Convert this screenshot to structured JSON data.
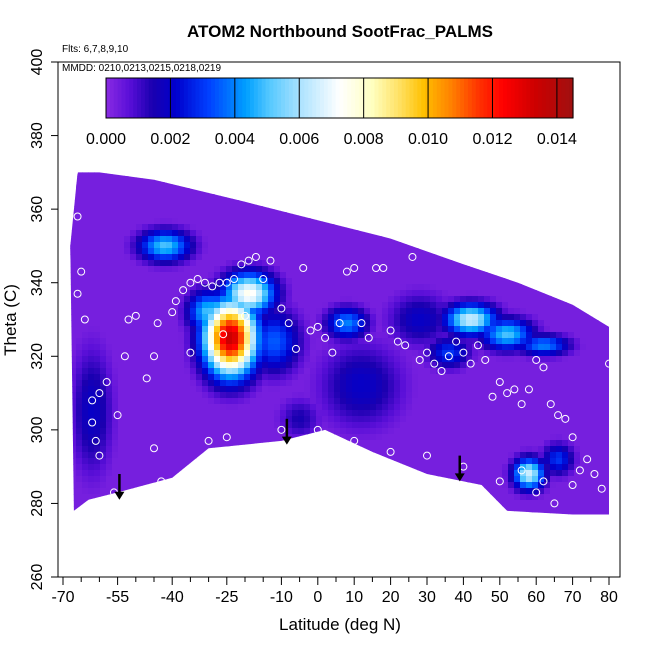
{
  "chart_data": {
    "type": "heatmap",
    "title": "ATOM2 Northbound SootFrac_PALMS",
    "subtitle_lines": [
      "Flts: 6,7,8,9,10",
      "MMDD: 0210,0213,0215,0218,0219"
    ],
    "xlabel": "Latitude (deg N)",
    "ylabel": "Theta (C)",
    "xlim": [
      -70,
      80
    ],
    "ylim": [
      260,
      400
    ],
    "x_ticks": [
      -70,
      -55,
      -40,
      -25,
      -10,
      0,
      10,
      20,
      30,
      40,
      50,
      60,
      70,
      80
    ],
    "y_ticks": [
      260,
      280,
      300,
      320,
      340,
      360,
      380,
      400
    ],
    "colorbar": {
      "range": [
        0,
        0.0145
      ],
      "ticks": [
        "0.000",
        "0.002",
        "0.004",
        "0.006",
        "0.008",
        "0.010",
        "0.012",
        "0.014"
      ],
      "colors": [
        "#8a2be2",
        "#5a0fd8",
        "#1a00b0",
        "#0000cd",
        "#0040ff",
        "#00a0ff",
        "#55c8ff",
        "#b0e4ff",
        "#ffffff",
        "#ffffc0",
        "#ffe060",
        "#ffc000",
        "#ff8000",
        "#ff3000",
        "#ff0000",
        "#cc0000",
        "#a01010"
      ],
      "color_stops": [
        0,
        0.05,
        0.1,
        0.15,
        0.22,
        0.3,
        0.35,
        0.42,
        0.5,
        0.57,
        0.63,
        0.68,
        0.74,
        0.8,
        0.85,
        0.92,
        1.0
      ]
    },
    "boundary_top": [
      [
        -68,
        350
      ],
      [
        -66,
        370
      ],
      [
        -60,
        370
      ],
      [
        -45,
        368
      ],
      [
        -20,
        362
      ],
      [
        0,
        357
      ],
      [
        20,
        352
      ],
      [
        40,
        345
      ],
      [
        55,
        340
      ],
      [
        70,
        334
      ],
      [
        80,
        328
      ]
    ],
    "boundary_bottom": [
      [
        80,
        277
      ],
      [
        70,
        277
      ],
      [
        52,
        278
      ],
      [
        45,
        285
      ],
      [
        30,
        288
      ],
      [
        15,
        294
      ],
      [
        2,
        300
      ],
      [
        -10,
        297
      ],
      [
        -30,
        295
      ],
      [
        -40,
        287
      ],
      [
        -55,
        283
      ],
      [
        -63,
        281
      ],
      [
        -67,
        278
      ]
    ],
    "hotspots": [
      {
        "lat": -24,
        "theta": 325,
        "value": 0.0135,
        "sx": 5,
        "sy": 7
      },
      {
        "lat": -19,
        "theta": 337,
        "value": 0.0075,
        "sx": 5,
        "sy": 4
      },
      {
        "lat": -30,
        "theta": 332,
        "value": 0.005,
        "sx": 4,
        "sy": 4
      },
      {
        "lat": -42,
        "theta": 350,
        "value": 0.005,
        "sx": 5,
        "sy": 3
      },
      {
        "lat": -12,
        "theta": 324,
        "value": 0.0035,
        "sx": 5,
        "sy": 6
      },
      {
        "lat": 8,
        "theta": 329,
        "value": 0.004,
        "sx": 4,
        "sy": 3
      },
      {
        "lat": 12,
        "theta": 312,
        "value": 0.002,
        "sx": 8,
        "sy": 8
      },
      {
        "lat": 42,
        "theta": 330,
        "value": 0.0065,
        "sx": 5,
        "sy": 3
      },
      {
        "lat": 52,
        "theta": 326,
        "value": 0.005,
        "sx": 5,
        "sy": 3
      },
      {
        "lat": 62,
        "theta": 323,
        "value": 0.004,
        "sx": 5,
        "sy": 2
      },
      {
        "lat": 36,
        "theta": 321,
        "value": 0.003,
        "sx": 4,
        "sy": 3
      },
      {
        "lat": 58,
        "theta": 288,
        "value": 0.0065,
        "sx": 3,
        "sy": 3
      },
      {
        "lat": 66,
        "theta": 292,
        "value": 0.003,
        "sx": 3,
        "sy": 3
      },
      {
        "lat": -62,
        "theta": 305,
        "value": 0.002,
        "sx": 4,
        "sy": 12
      },
      {
        "lat": -5,
        "theta": 303,
        "value": 0.0015,
        "sx": 4,
        "sy": 4
      },
      {
        "lat": 28,
        "theta": 330,
        "value": 0.002,
        "sx": 6,
        "sy": 5
      }
    ],
    "observation_points": [
      [
        -67,
        370
      ],
      [
        -66,
        358
      ],
      [
        -65,
        343
      ],
      [
        -66,
        337
      ],
      [
        -64,
        330
      ],
      [
        -62,
        308
      ],
      [
        -60,
        310
      ],
      [
        -58,
        313
      ],
      [
        -62,
        302
      ],
      [
        -61,
        297
      ],
      [
        -60,
        293
      ],
      [
        -58,
        281
      ],
      [
        -56,
        283
      ],
      [
        -55,
        304
      ],
      [
        -53,
        320
      ],
      [
        -52,
        330
      ],
      [
        -50,
        331
      ],
      [
        -47,
        314
      ],
      [
        -45,
        320
      ],
      [
        -44,
        329
      ],
      [
        -43,
        286
      ],
      [
        -40,
        332
      ],
      [
        -39,
        335
      ],
      [
        -37,
        338
      ],
      [
        -35,
        340
      ],
      [
        -33,
        341
      ],
      [
        -31,
        340
      ],
      [
        -29,
        339
      ],
      [
        -27,
        340
      ],
      [
        -25,
        340
      ],
      [
        -23,
        341
      ],
      [
        -21,
        345
      ],
      [
        -19,
        346
      ],
      [
        -17,
        347
      ],
      [
        -15,
        341
      ],
      [
        -13,
        346
      ],
      [
        -10,
        333
      ],
      [
        -8,
        329
      ],
      [
        -6,
        322
      ],
      [
        -4,
        344
      ],
      [
        -2,
        327
      ],
      [
        0,
        328
      ],
      [
        2,
        325
      ],
      [
        4,
        321
      ],
      [
        6,
        329
      ],
      [
        8,
        343
      ],
      [
        10,
        344
      ],
      [
        12,
        329
      ],
      [
        14,
        325
      ],
      [
        16,
        344
      ],
      [
        18,
        344
      ],
      [
        20,
        327
      ],
      [
        22,
        324
      ],
      [
        24,
        323
      ],
      [
        26,
        347
      ],
      [
        28,
        319
      ],
      [
        30,
        321
      ],
      [
        32,
        318
      ],
      [
        34,
        316
      ],
      [
        36,
        320
      ],
      [
        38,
        324
      ],
      [
        40,
        321
      ],
      [
        42,
        318
      ],
      [
        44,
        323
      ],
      [
        46,
        319
      ],
      [
        48,
        309
      ],
      [
        50,
        313
      ],
      [
        52,
        310
      ],
      [
        54,
        311
      ],
      [
        56,
        307
      ],
      [
        58,
        311
      ],
      [
        60,
        319
      ],
      [
        62,
        317
      ],
      [
        64,
        307
      ],
      [
        66,
        304
      ],
      [
        68,
        303
      ],
      [
        70,
        298
      ],
      [
        72,
        289
      ],
      [
        74,
        292
      ],
      [
        76,
        288
      ],
      [
        78,
        284
      ],
      [
        80,
        318
      ],
      [
        82,
        322
      ],
      [
        -30,
        297
      ],
      [
        -25,
        298
      ],
      [
        -10,
        300
      ],
      [
        0,
        300
      ],
      [
        10,
        297
      ],
      [
        20,
        294
      ],
      [
        30,
        293
      ],
      [
        40,
        290
      ],
      [
        50,
        286
      ],
      [
        60,
        283
      ],
      [
        65,
        280
      ],
      [
        70,
        285
      ],
      [
        56,
        289
      ],
      [
        62,
        286
      ],
      [
        -45,
        295
      ],
      [
        -20,
        331
      ],
      [
        -26,
        326
      ],
      [
        -35,
        321
      ]
    ],
    "arrows": [
      {
        "lat": -54.5,
        "theta_top": 288,
        "theta_bottom": 281
      },
      {
        "lat": -8.5,
        "theta_top": 303,
        "theta_bottom": 296
      },
      {
        "lat": 39,
        "theta_top": 293,
        "theta_bottom": 286
      }
    ],
    "plot_bg_color": "#ffffff",
    "marker_color": "#ffffff"
  }
}
